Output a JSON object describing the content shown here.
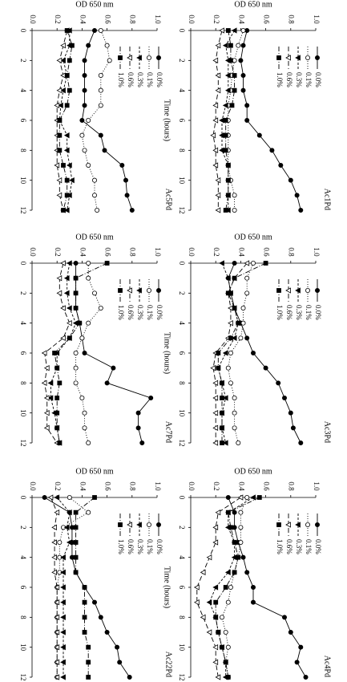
{
  "chart_data": [
    {
      "type": "line",
      "title": "Ac5Pd",
      "y_label": "OD 650 nm",
      "x": [
        0,
        1,
        2,
        3,
        4,
        5,
        6,
        7,
        8,
        9,
        10,
        11,
        12
      ],
      "xlim": [
        0,
        12
      ],
      "xticks": [
        0,
        2,
        4,
        6,
        8,
        10,
        12
      ],
      "ylim": [
        0,
        1
      ],
      "yticks": [
        {
          "value": 0,
          "label": "0.0"
        },
        0.2,
        0.4,
        0.6,
        0.8,
        {
          "value": 1,
          "label": "1.0"
        }
      ],
      "series": [
        {
          "name": "0.0%",
          "color": "#000",
          "marker": "filled-circle",
          "dash": "solid",
          "values": [
            0.5,
            0.45,
            0.42,
            0.42,
            0.42,
            0.42,
            0.4,
            0.55,
            0.58,
            0.72,
            0.75,
            0.76,
            0.8
          ]
        },
        {
          "name": "0.1%",
          "color": "#000",
          "marker": "open-circle",
          "dash": "dotted",
          "values": [
            0.55,
            0.6,
            0.62,
            0.55,
            0.55,
            0.55,
            0.45,
            0.4,
            0.42,
            0.45,
            0.5,
            0.5,
            0.52
          ]
        },
        {
          "name": "0.3%",
          "color": "#000",
          "marker": "filled-triangle",
          "dash": "dashed",
          "values": [
            0.3,
            0.3,
            0.25,
            0.28,
            0.25,
            0.23,
            0.22,
            0.28,
            0.28,
            0.3,
            0.32,
            0.3,
            0.28
          ]
        },
        {
          "name": "0.6%",
          "color": "#000",
          "marker": "open-triangle",
          "dash": "long-dashed",
          "values": [
            0.28,
            0.25,
            0.22,
            0.25,
            0.22,
            0.2,
            0.2,
            0.2,
            0.2,
            0.2,
            0.22,
            0.22,
            0.25
          ]
        },
        {
          "name": "1.0%",
          "color": "#000",
          "marker": "filled-square",
          "dash": "dash-dot",
          "values": [
            0.28,
            0.32,
            0.3,
            0.28,
            0.3,
            0.28,
            0.22,
            0.22,
            0.22,
            0.25,
            0.28,
            0.28,
            0.25
          ]
        }
      ]
    },
    {
      "type": "line",
      "title": "Ac1Pd",
      "y_label": "OD 650 nm",
      "x_label": "Time (hours)",
      "x": [
        0,
        1,
        2,
        3,
        4,
        5,
        6,
        7,
        8,
        9,
        10,
        11,
        12
      ],
      "xlim": [
        0,
        12
      ],
      "xticks": [
        0,
        2,
        4,
        6,
        8,
        10,
        12
      ],
      "ylim": [
        0,
        1
      ],
      "yticks": [
        {
          "value": 0,
          "label": "0.0"
        },
        0.2,
        0.4,
        0.6,
        0.8,
        {
          "value": 1,
          "label": "1.0"
        }
      ],
      "series": [
        {
          "name": "0.0%",
          "color": "#000",
          "marker": "filled-circle",
          "dash": "solid",
          "values": [
            0.45,
            0.42,
            0.4,
            0.42,
            0.42,
            0.45,
            0.45,
            0.55,
            0.65,
            0.72,
            0.8,
            0.85,
            0.88
          ]
        },
        {
          "name": "0.1%",
          "color": "#000",
          "marker": "open-circle",
          "dash": "dotted",
          "values": [
            0.42,
            0.38,
            0.35,
            0.33,
            0.32,
            0.3,
            0.3,
            0.3,
            0.3,
            0.3,
            0.32,
            0.35,
            0.35
          ]
        },
        {
          "name": "0.3%",
          "color": "#000",
          "marker": "filled-triangle",
          "dash": "dashed",
          "values": [
            0.35,
            0.28,
            0.3,
            0.3,
            0.3,
            0.28,
            0.25,
            0.25,
            0.25,
            0.3,
            0.3,
            0.3,
            0.3
          ]
        },
        {
          "name": "0.6%",
          "color": "#000",
          "marker": "open-triangle",
          "dash": "long-dashed",
          "values": [
            0.25,
            0.22,
            0.2,
            0.22,
            0.22,
            0.2,
            0.2,
            0.18,
            0.2,
            0.2,
            0.22,
            0.22,
            0.22
          ]
        },
        {
          "name": "1.0%",
          "color": "#000",
          "marker": "filled-square",
          "dash": "dash-dot",
          "values": [
            0.3,
            0.32,
            0.32,
            0.35,
            0.35,
            0.33,
            0.28,
            0.28,
            0.28,
            0.3,
            0.3,
            0.3,
            0.28
          ]
        }
      ]
    },
    {
      "type": "line",
      "title": "Ac7Pd",
      "y_label": "OD 650 nm",
      "x": [
        0,
        1,
        2,
        3,
        4,
        5,
        6,
        7,
        8,
        9,
        10,
        11,
        12
      ],
      "xlim": [
        0,
        12
      ],
      "xticks": [
        0,
        2,
        4,
        6,
        8,
        10,
        12
      ],
      "ylim": [
        0,
        1
      ],
      "yticks": [
        {
          "value": 0,
          "label": "0.0"
        },
        0.2,
        0.4,
        0.6,
        0.8,
        {
          "value": 1,
          "label": "1.0"
        }
      ],
      "series": [
        {
          "name": "0.0%",
          "color": "#000",
          "marker": "filled-circle",
          "dash": "solid",
          "values": [
            0.35,
            0.35,
            0.35,
            0.35,
            0.38,
            0.4,
            0.42,
            0.65,
            0.6,
            0.95,
            0.85,
            0.85,
            0.88
          ]
        },
        {
          "name": "0.1%",
          "color": "#000",
          "marker": "open-circle",
          "dash": "dotted",
          "values": [
            0.45,
            0.45,
            0.5,
            0.55,
            0.45,
            0.4,
            0.35,
            0.35,
            0.35,
            0.4,
            0.42,
            0.42,
            0.45
          ]
        },
        {
          "name": "0.3%",
          "color": "#000",
          "marker": "filled-triangle",
          "dash": "dashed",
          "values": [
            0.3,
            0.28,
            0.28,
            0.3,
            0.35,
            0.3,
            0.2,
            0.2,
            0.15,
            0.15,
            0.18,
            0.2,
            0.22
          ]
        },
        {
          "name": "0.6%",
          "color": "#000",
          "marker": "open-triangle",
          "dash": "long-dashed",
          "values": [
            0.25,
            0.22,
            0.22,
            0.25,
            0.3,
            0.25,
            0.1,
            0.12,
            0.1,
            0.12,
            0.12,
            0.12,
            0.2
          ]
        },
        {
          "name": "1.0%",
          "color": "#000",
          "marker": "filled-square",
          "dash": "dash-dot",
          "values": [
            0.6,
            0.35,
            0.35,
            0.35,
            0.38,
            0.3,
            0.18,
            0.2,
            0.22,
            0.2,
            0.2,
            0.2,
            0.22
          ]
        }
      ]
    },
    {
      "type": "line",
      "title": "Ac3Pd",
      "y_label": "OD 650 nm",
      "x_label": "Time (hours)",
      "x": [
        0,
        1,
        2,
        3,
        4,
        5,
        6,
        7,
        8,
        9,
        10,
        11,
        12
      ],
      "xlim": [
        0,
        12
      ],
      "xticks": [
        0,
        2,
        4,
        6,
        8,
        10,
        12
      ],
      "ylim": [
        0,
        1
      ],
      "yticks": [
        {
          "value": 0,
          "label": "0.0"
        },
        0.2,
        0.4,
        0.6,
        0.8,
        {
          "value": 1,
          "label": "1.0"
        }
      ],
      "series": [
        {
          "name": "0.0%",
          "color": "#000",
          "marker": "filled-circle",
          "dash": "solid",
          "values": [
            0.35,
            0.3,
            0.32,
            0.35,
            0.4,
            0.45,
            0.5,
            0.6,
            0.7,
            0.75,
            0.8,
            0.82,
            0.88
          ]
        },
        {
          "name": "0.1%",
          "color": "#000",
          "marker": "open-circle",
          "dash": "dotted",
          "values": [
            0.5,
            0.45,
            0.45,
            0.42,
            0.42,
            0.4,
            0.32,
            0.3,
            0.32,
            0.35,
            0.35,
            0.35,
            0.38
          ]
        },
        {
          "name": "0.3%",
          "color": "#000",
          "marker": "filled-triangle",
          "dash": "dashed",
          "values": [
            0.25,
            0.3,
            0.32,
            0.35,
            0.38,
            0.35,
            0.28,
            0.22,
            0.25,
            0.28,
            0.25,
            0.25,
            0.28
          ]
        },
        {
          "name": "0.6%",
          "color": "#000",
          "marker": "open-triangle",
          "dash": "long-dashed",
          "values": [
            0.45,
            0.35,
            0.3,
            0.32,
            0.32,
            0.3,
            0.2,
            0.18,
            0.2,
            0.2,
            0.2,
            0.2,
            0.2
          ]
        },
        {
          "name": "1.0%",
          "color": "#000",
          "marker": "filled-square",
          "dash": "dash-dot",
          "values": [
            0.6,
            0.35,
            0.3,
            0.35,
            0.38,
            0.32,
            0.22,
            0.22,
            0.25,
            0.25,
            0.25,
            0.25,
            0.25
          ]
        }
      ]
    },
    {
      "type": "line",
      "title": "Ac22Pd",
      "y_label": "OD 650 nm",
      "x": [
        0,
        1,
        2,
        3,
        4,
        5,
        6,
        7,
        8,
        9,
        10,
        11,
        12
      ],
      "xlim": [
        0,
        12
      ],
      "xticks": [
        0,
        2,
        4,
        6,
        8,
        10,
        12
      ],
      "ylim": [
        0,
        1
      ],
      "yticks": [
        {
          "value": 0,
          "label": "0.0"
        },
        0.2,
        0.4,
        0.6,
        0.8,
        {
          "value": 1,
          "label": "1.0"
        }
      ],
      "series": [
        {
          "name": "0.0%",
          "color": "#000",
          "marker": "filled-circle",
          "dash": "solid",
          "values": [
            0.1,
            0.3,
            0.32,
            0.32,
            0.32,
            0.35,
            0.42,
            0.5,
            0.55,
            0.6,
            0.68,
            0.7,
            0.78
          ]
        },
        {
          "name": "0.1%",
          "color": "#000",
          "marker": "open-circle",
          "dash": "dotted",
          "values": [
            0.3,
            0.45,
            0.25,
            0.22,
            0.22,
            0.22,
            0.2,
            0.2,
            0.2,
            0.2,
            0.2,
            0.2,
            0.2
          ]
        },
        {
          "name": "0.3%",
          "color": "#000",
          "marker": "filled-triangle",
          "dash": "dashed",
          "values": [
            0.2,
            0.3,
            0.28,
            0.3,
            0.25,
            0.25,
            0.25,
            0.25,
            0.25,
            0.25,
            0.25,
            0.25,
            0.25
          ]
        },
        {
          "name": "0.6%",
          "color": "#000",
          "marker": "open-triangle",
          "dash": "long-dashed",
          "values": [
            0.15,
            0.2,
            0.18,
            0.18,
            0.18,
            0.18,
            0.2,
            0.2,
            0.2,
            0.2,
            0.2,
            0.2,
            0.2
          ]
        },
        {
          "name": "1.0%",
          "color": "#000",
          "marker": "filled-square",
          "dash": "dash-dot",
          "values": [
            0.5,
            0.35,
            0.35,
            0.35,
            0.35,
            0.35,
            0.42,
            0.42,
            0.42,
            0.42,
            0.45,
            0.45,
            0.45
          ]
        }
      ]
    },
    {
      "type": "line",
      "title": "Ac4Pd",
      "y_label": "OD 650 nm",
      "x_label": "Time (hours)",
      "x": [
        0,
        1,
        2,
        3,
        4,
        5,
        6,
        7,
        8,
        9,
        10,
        11,
        12
      ],
      "xlim": [
        0,
        12
      ],
      "xticks": [
        0,
        2,
        4,
        6,
        8,
        10,
        12
      ],
      "ylim": [
        0,
        1
      ],
      "yticks": [
        {
          "value": 0,
          "label": "0.0"
        },
        0.2,
        0.4,
        0.6,
        0.8,
        {
          "value": 1,
          "label": "1.0"
        }
      ],
      "series": [
        {
          "name": "0.0%",
          "color": "#000",
          "marker": "filled-circle",
          "dash": "solid",
          "values": [
            0.3,
            0.35,
            0.35,
            0.38,
            0.42,
            0.45,
            0.5,
            0.5,
            0.75,
            0.8,
            0.88,
            0.85,
            0.92
          ]
        },
        {
          "name": "0.1%",
          "color": "#000",
          "marker": "open-circle",
          "dash": "dotted",
          "values": [
            0.45,
            0.4,
            0.4,
            0.4,
            0.38,
            0.35,
            0.32,
            0.3,
            0.25,
            0.28,
            0.3,
            0.28,
            0.3
          ]
        },
        {
          "name": "0.3%",
          "color": "#000",
          "marker": "filled-triangle",
          "dash": "dashed",
          "values": [
            0.5,
            0.3,
            0.3,
            0.35,
            0.35,
            0.3,
            0.2,
            0.15,
            0.2,
            0.22,
            0.25,
            0.28,
            0.28
          ]
        },
        {
          "name": "0.6%",
          "color": "#000",
          "marker": "open-triangle",
          "dash": "long-dashed",
          "values": [
            0.4,
            0.22,
            0.2,
            0.2,
            0.15,
            0.1,
            0.05,
            0.05,
            0.1,
            0.15,
            0.2,
            0.2,
            0.22
          ]
        },
        {
          "name": "1.0%",
          "color": "#000",
          "marker": "filled-square",
          "dash": "dash-dot",
          "values": [
            0.55,
            0.3,
            0.32,
            0.35,
            0.38,
            0.35,
            0.28,
            0.2,
            0.2,
            0.22,
            0.25,
            0.28,
            0.3
          ]
        }
      ]
    }
  ]
}
